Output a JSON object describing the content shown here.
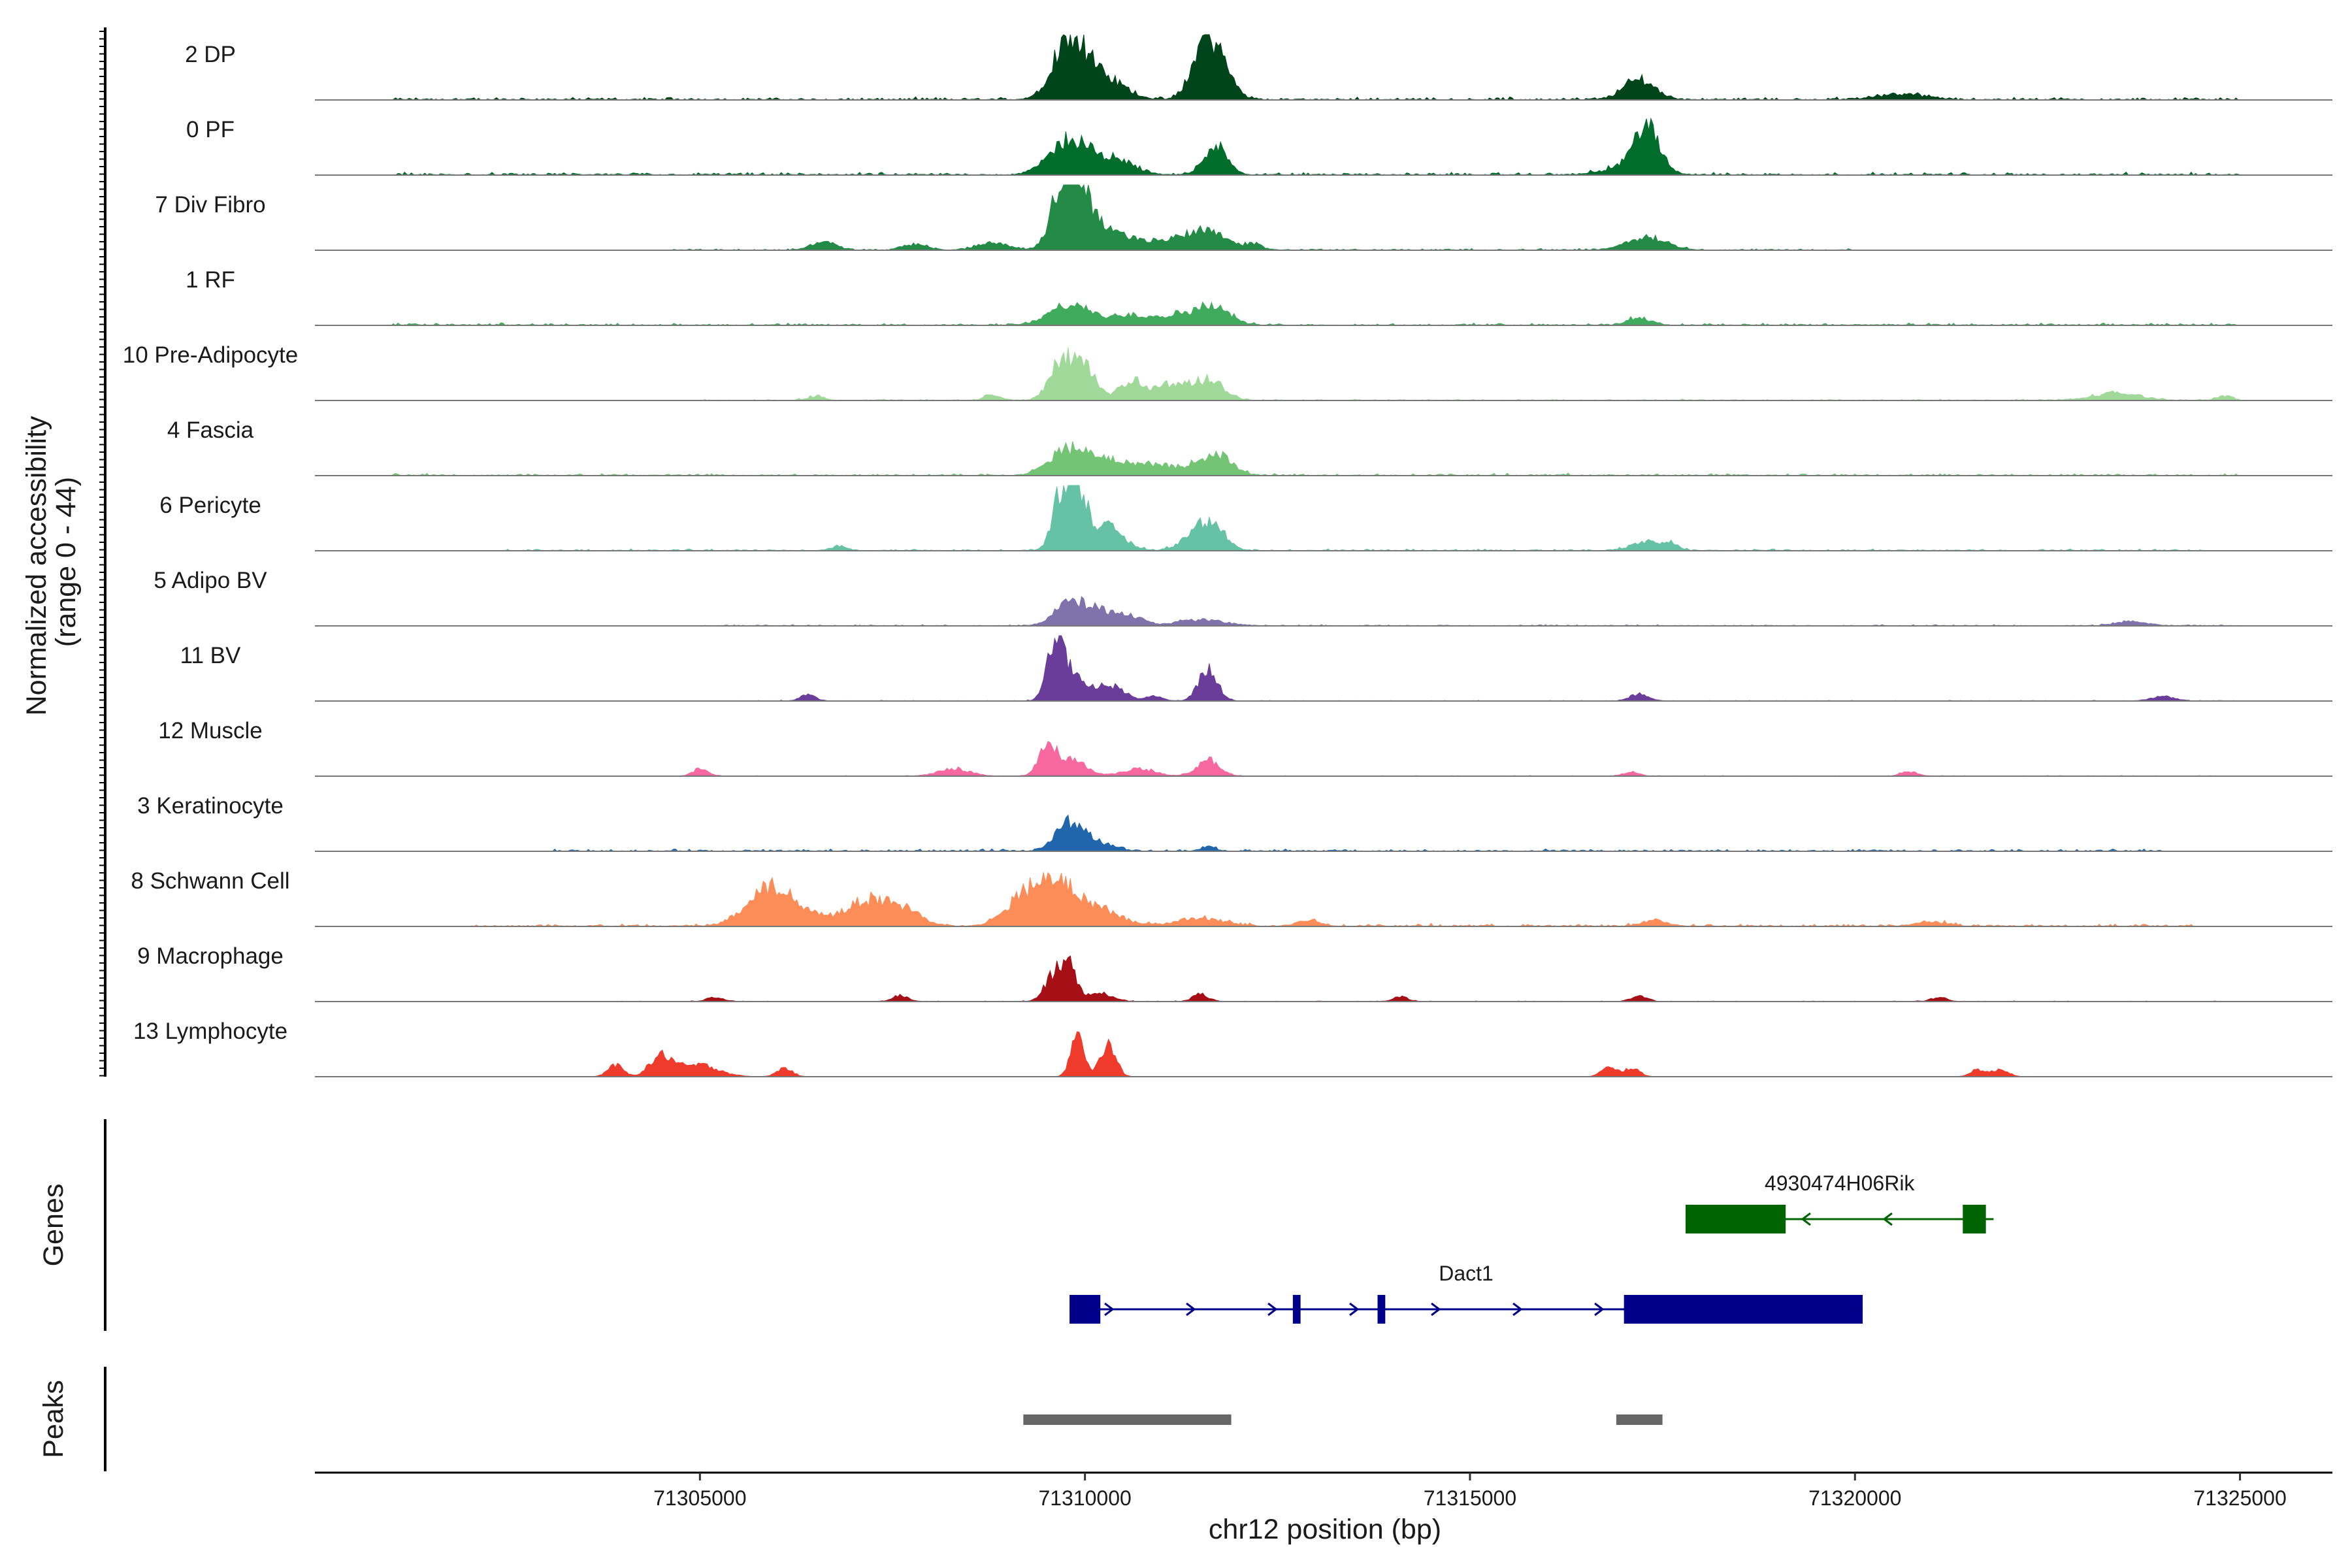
{
  "chart_data": {
    "type": "area",
    "title": "",
    "xlabel": "chr12 position (bp)",
    "ylabel": "Normalized accessibility\n(range 0 - 44)",
    "ylabel_lines": [
      "Normalized accessibility",
      "(range 0 - 44)"
    ],
    "ylim": [
      0,
      44
    ],
    "xlim": [
      71300000,
      71326200
    ],
    "xticks": [
      71305000,
      71310000,
      71315000,
      71320000,
      71325000
    ],
    "xtick_labels": [
      "71305000",
      "71310000",
      "71315000",
      "71320000",
      "71325000"
    ],
    "region_labels": {
      "genes": "Genes",
      "peaks": "Peaks"
    },
    "tracks": [
      {
        "name": "2 DP",
        "color": "#00441b",
        "noise": 1.2,
        "noise_range": [
          71301000,
          71325000
        ],
        "peaks": [
          [
            71309700,
            180,
            22
          ],
          [
            71309900,
            200,
            28
          ],
          [
            71310300,
            250,
            12
          ],
          [
            71311500,
            150,
            22
          ],
          [
            71311700,
            180,
            30
          ],
          [
            71317200,
            200,
            14
          ],
          [
            71320600,
            300,
            4
          ]
        ]
      },
      {
        "name": "0 PF",
        "color": "#006d2c",
        "noise": 1.2,
        "noise_range": [
          71301000,
          71325000
        ],
        "peaks": [
          [
            71309800,
            250,
            24
          ],
          [
            71310400,
            250,
            10
          ],
          [
            71311700,
            150,
            20
          ],
          [
            71317300,
            160,
            28
          ],
          [
            71317100,
            300,
            6
          ]
        ]
      },
      {
        "name": "7 Div Fibro",
        "color": "#238b45",
        "noise": 0.8,
        "noise_range": [
          71304500,
          71320000
        ],
        "peaks": [
          [
            71309700,
            150,
            34
          ],
          [
            71309900,
            150,
            40
          ],
          [
            71310200,
            300,
            15
          ],
          [
            71311100,
            350,
            6
          ],
          [
            71311600,
            250,
            12
          ],
          [
            71306600,
            150,
            6
          ],
          [
            71307800,
            150,
            4
          ],
          [
            71308800,
            200,
            5
          ],
          [
            71317300,
            250,
            9
          ],
          [
            71312200,
            100,
            4
          ]
        ]
      },
      {
        "name": "1 RF",
        "color": "#41ab5d",
        "noise": 1.0,
        "noise_range": [
          71301000,
          71325000
        ],
        "peaks": [
          [
            71309800,
            250,
            14
          ],
          [
            71310600,
            300,
            7
          ],
          [
            71311300,
            250,
            7
          ],
          [
            71311700,
            200,
            11
          ],
          [
            71317200,
            150,
            5
          ]
        ]
      },
      {
        "name": "10 Pre-Adipocyte",
        "color": "#a1d99b",
        "noise": 0.6,
        "noise_range": [
          71305000,
          71325000
        ],
        "peaks": [
          [
            71309700,
            150,
            28
          ],
          [
            71310000,
            150,
            20
          ],
          [
            71310600,
            150,
            14
          ],
          [
            71311100,
            200,
            11
          ],
          [
            71311600,
            200,
            14
          ],
          [
            71306500,
            100,
            3
          ],
          [
            71308800,
            100,
            4
          ],
          [
            71323400,
            300,
            5
          ],
          [
            71324800,
            100,
            3
          ]
        ]
      },
      {
        "name": "4 Fascia",
        "color": "#74c476",
        "noise": 1.0,
        "noise_range": [
          71301000,
          71325000
        ],
        "peaks": [
          [
            71309800,
            250,
            18
          ],
          [
            71310400,
            300,
            9
          ],
          [
            71311700,
            200,
            14
          ],
          [
            71311100,
            300,
            6
          ]
        ]
      },
      {
        "name": "6 Pericyte",
        "color": "#66c2a4",
        "noise": 0.8,
        "noise_range": [
          71302500,
          71324500
        ],
        "peaks": [
          [
            71309700,
            120,
            36
          ],
          [
            71309900,
            120,
            42
          ],
          [
            71310300,
            200,
            16
          ],
          [
            71311500,
            200,
            14
          ],
          [
            71311700,
            150,
            10
          ],
          [
            71306800,
            100,
            3
          ],
          [
            71317300,
            200,
            6
          ],
          [
            71317600,
            100,
            4
          ]
        ]
      },
      {
        "name": "5 Adipo BV",
        "color": "#8073ac",
        "noise": 0.6,
        "noise_range": [
          71305000,
          71325000
        ],
        "peaks": [
          [
            71309800,
            200,
            15
          ],
          [
            71310200,
            200,
            10
          ],
          [
            71310600,
            150,
            6
          ],
          [
            71311500,
            300,
            4
          ],
          [
            71323600,
            200,
            3
          ]
        ]
      },
      {
        "name": "11 BV",
        "color": "#6a3d9a",
        "noise": 0.3,
        "noise_range": [
          71305000,
          71325000
        ],
        "peaks": [
          [
            71309600,
            100,
            34
          ],
          [
            71309800,
            150,
            20
          ],
          [
            71310300,
            200,
            11
          ],
          [
            71311600,
            120,
            22
          ],
          [
            71306400,
            100,
            4
          ],
          [
            71317200,
            120,
            5
          ],
          [
            71324000,
            150,
            3
          ],
          [
            71310900,
            100,
            3
          ]
        ]
      },
      {
        "name": "12 Muscle",
        "color": "#f768a1",
        "noise": 0.3,
        "noise_range": [
          71305000,
          71325000
        ],
        "peaks": [
          [
            71309500,
            100,
            22
          ],
          [
            71309800,
            200,
            12
          ],
          [
            71311600,
            150,
            11
          ],
          [
            71310700,
            200,
            5
          ],
          [
            71305000,
            100,
            5
          ],
          [
            71308300,
            200,
            5
          ],
          [
            71320700,
            100,
            3
          ],
          [
            71317100,
            100,
            3
          ]
        ]
      },
      {
        "name": "3 Keratinocyte",
        "color": "#2166ac",
        "noise": 1.0,
        "noise_range": [
          71303000,
          71324000
        ],
        "peaks": [
          [
            71309800,
            180,
            20
          ],
          [
            71310200,
            200,
            5
          ],
          [
            71311600,
            100,
            3
          ]
        ]
      },
      {
        "name": "8 Schwann Cell",
        "color": "#fc8d59",
        "noise": 1.2,
        "noise_range": [
          71302000,
          71324500
        ],
        "peaks": [
          [
            71305800,
            250,
            20
          ],
          [
            71306200,
            300,
            14
          ],
          [
            71307200,
            300,
            18
          ],
          [
            71307700,
            200,
            8
          ],
          [
            71309200,
            250,
            14
          ],
          [
            71309600,
            300,
            24
          ],
          [
            71310100,
            350,
            10
          ],
          [
            71311500,
            300,
            5
          ],
          [
            71312900,
            150,
            4
          ],
          [
            71317400,
            150,
            4
          ],
          [
            71321000,
            200,
            3
          ]
        ]
      },
      {
        "name": "9 Macrophage",
        "color": "#a50f15",
        "noise": 0.3,
        "noise_range": [
          71303500,
          71325000
        ],
        "peaks": [
          [
            71309600,
            120,
            18
          ],
          [
            71309800,
            100,
            22
          ],
          [
            71310200,
            150,
            6
          ],
          [
            71311500,
            100,
            5
          ],
          [
            71307600,
            100,
            4
          ],
          [
            71305200,
            100,
            3
          ],
          [
            71317200,
            100,
            4
          ],
          [
            71321100,
            100,
            3
          ],
          [
            71314100,
            100,
            3
          ]
        ]
      },
      {
        "name": "13 Lymphocyte",
        "color": "#ef3b2c",
        "noise": 0,
        "noise_range": [
          71303000,
          71325000
        ],
        "peaks": [
          [
            71309900,
            80,
            36
          ],
          [
            71310300,
            100,
            22
          ],
          [
            71303900,
            100,
            8
          ],
          [
            71304500,
            150,
            14
          ],
          [
            71305000,
            250,
            8
          ],
          [
            71306100,
            100,
            6
          ],
          [
            71316800,
            100,
            6
          ],
          [
            71317100,
            100,
            6
          ],
          [
            71321600,
            100,
            5
          ],
          [
            71321900,
            100,
            5
          ]
        ]
      }
    ],
    "genes": [
      {
        "name": "4930474H06Rik",
        "strand": "-",
        "color": "#006400",
        "start": 71317800,
        "end": 71321800,
        "exons": [
          [
            71317800,
            71319100
          ],
          [
            71321400,
            71321700
          ]
        ]
      },
      {
        "name": "Dact1",
        "strand": "+",
        "color": "#00008b",
        "start": 71309800,
        "end": 71320100,
        "exons": [
          [
            71309800,
            71310200
          ],
          [
            71312700,
            71312800
          ],
          [
            71313800,
            71313900
          ],
          [
            71317000,
            71320100
          ]
        ]
      }
    ],
    "peaks_regions": [
      {
        "start": 71309200,
        "end": 71311900,
        "color": "#666666"
      },
      {
        "start": 71316900,
        "end": 71317500,
        "color": "#666666"
      }
    ]
  }
}
